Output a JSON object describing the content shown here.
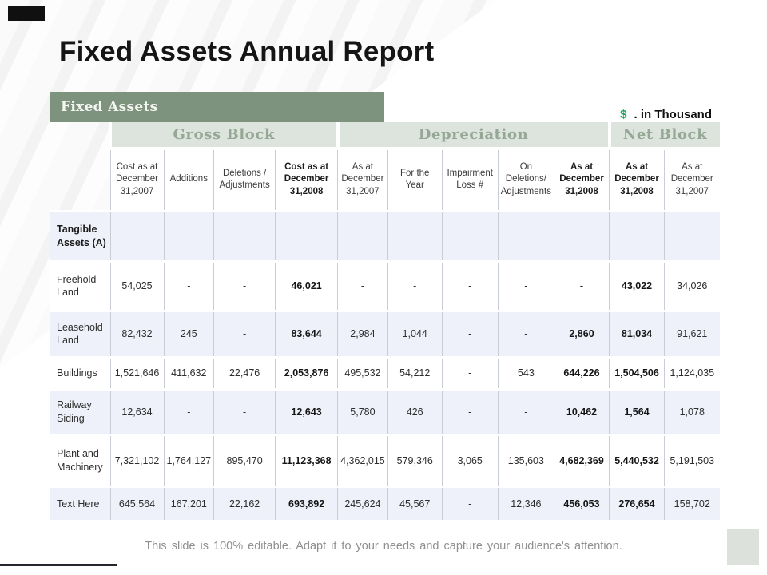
{
  "slide": {
    "title": "Fixed Assets Annual Report",
    "section_label": "Fixed Assets",
    "currency_symbol": "$",
    "currency_note": ". in Thousand",
    "footer_note": "This slide is 100% editable. Adapt it to your needs and capture your audience's attention.",
    "colors": {
      "accent_green": "#7e937d",
      "group_header_bg": "#dde3dd",
      "group_header_text": "#95a895",
      "row_stripe": "#eef1f9",
      "dollar_green": "#1ea45c"
    }
  },
  "table": {
    "column_groups": [
      {
        "label": "Gross Block",
        "span": 4
      },
      {
        "label": "Depreciation",
        "span": 5
      },
      {
        "label": "Net Block",
        "span": 2
      }
    ],
    "columns": [
      {
        "label": "Cost as at December 31,2007",
        "bold": false
      },
      {
        "label": "Additions",
        "bold": false
      },
      {
        "label": "Deletions / Adjustments",
        "bold": false
      },
      {
        "label": "Cost as at December 31,2008",
        "bold": true
      },
      {
        "label": "As at December 31,2007",
        "bold": false
      },
      {
        "label": "For the Year",
        "bold": false
      },
      {
        "label": "Impairment Loss #",
        "bold": false
      },
      {
        "label": "On Deletions/ Adjustments",
        "bold": false
      },
      {
        "label": "As at December 31,2008",
        "bold": true
      },
      {
        "label": "As at December 31,2008",
        "bold": true
      },
      {
        "label": "As at December 31,2007",
        "bold": false
      }
    ],
    "rows": [
      {
        "label": "Tangible Assets (A)",
        "label_bold": true,
        "cells": [
          "",
          "",
          "",
          "",
          "",
          "",
          "",
          "",
          "",
          "",
          ""
        ]
      },
      {
        "label": "Freehold Land",
        "label_bold": false,
        "cells": [
          "54,025",
          "-",
          "-",
          "46,021",
          "-",
          "-",
          "-",
          "-",
          "-",
          "43,022",
          "34,026"
        ]
      },
      {
        "label": "Leasehold Land",
        "label_bold": false,
        "cells": [
          "82,432",
          "245",
          "-",
          "83,644",
          "2,984",
          "1,044",
          "-",
          "-",
          "2,860",
          "81,034",
          "91,621"
        ]
      },
      {
        "label": "Buildings",
        "label_bold": false,
        "cells": [
          "1,521,646",
          "411,632",
          "22,476",
          "2,053,876",
          "495,532",
          "54,212",
          "-",
          "543",
          "644,226",
          "1,504,506",
          "1,124,035"
        ]
      },
      {
        "label": "Railway Siding",
        "label_bold": false,
        "cells": [
          "12,634",
          "-",
          "-",
          "12,643",
          "5,780",
          "426",
          "-",
          "-",
          "10,462",
          "1,564",
          "1,078"
        ]
      },
      {
        "label": "Plant and Machinery",
        "label_bold": false,
        "cells": [
          "7,321,102",
          "1,764,127",
          "895,470",
          "11,123,368",
          "4,362,015",
          "579,346",
          "3,065",
          "135,603",
          "4,682,369",
          "5,440,532",
          "5,191,503"
        ]
      },
      {
        "label": "Text Here",
        "label_bold": false,
        "cells": [
          "645,564",
          "167,201",
          "22,162",
          "693,892",
          "245,624",
          "45,567",
          "-",
          "12,346",
          "456,053",
          "276,654",
          "158,702"
        ]
      }
    ]
  }
}
